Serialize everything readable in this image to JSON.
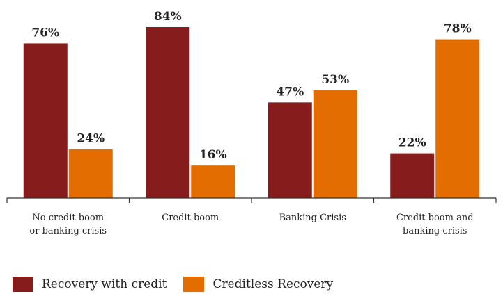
{
  "chart_data": {
    "type": "bar",
    "categories": [
      "No credit boom\nor banking crisis",
      "Credit boom",
      "Banking Crisis",
      "Credit boom and\nbanking crisis"
    ],
    "series": [
      {
        "name": "Recovery with credit",
        "color": "#861C1B",
        "values": [
          76,
          84,
          47,
          22
        ],
        "labels": [
          "76%",
          "84%",
          "47%",
          "22%"
        ]
      },
      {
        "name": "Creditless Recovery",
        "color": "#E36D00",
        "values": [
          24,
          16,
          53,
          78
        ],
        "labels": [
          "24%",
          "16%",
          "53%",
          "78%"
        ]
      }
    ],
    "ylim": [
      0,
      100
    ],
    "grid": false,
    "legend_position": "bottom-left"
  }
}
